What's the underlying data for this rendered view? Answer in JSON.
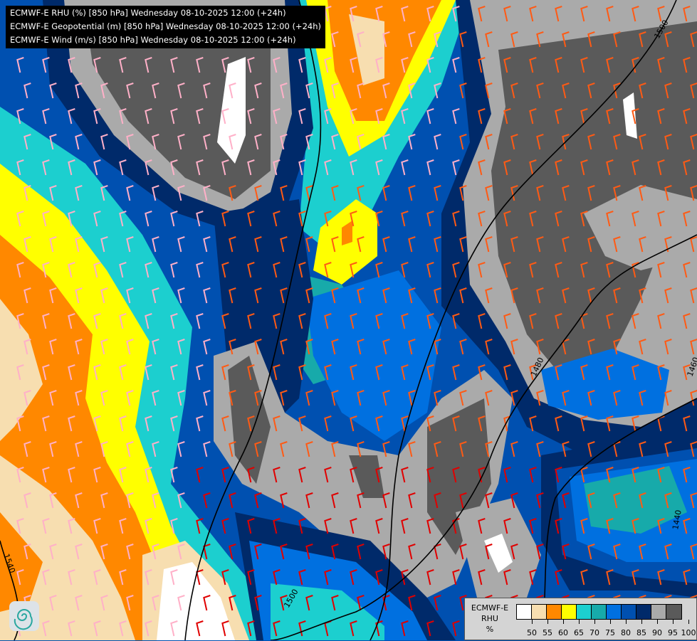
{
  "header": {
    "lines": [
      "ECMWF-E RHU (%) [850 hPa] Wednesday 08-10-2025 12:00 (+24h)",
      "ECMWF-E Geopotential (m) [850 hPa] Wednesday 08-10-2025 12:00 (+24h)",
      "ECMWF-E Wind (m/s) [850 hPa] Wednesday 08-10-2025 12:00 (+24h)"
    ]
  },
  "legend": {
    "name_line1": "ECMWF-E",
    "name_line2": "RHU",
    "unit": "%",
    "colors": [
      "#ffffff",
      "#f7deb0",
      "#ff8800",
      "#ffff00",
      "#1ccfcf",
      "#17aaaa",
      "#0070e0",
      "#0050b0",
      "#002a6a",
      "#aaaaaa",
      "#5a5a5a"
    ],
    "ticks": [
      "50",
      "55",
      "60",
      "65",
      "70",
      "75",
      "80",
      "85",
      "90",
      "95",
      "100"
    ]
  },
  "contours": {
    "labels": [
      "1500",
      "1480",
      "1460",
      "1440",
      "1500",
      "1540"
    ],
    "color": "#000000"
  },
  "wind_colors": {
    "light": "#ffb0c8",
    "moderate": "#ff5a14",
    "strong": "#e00000"
  },
  "logo": {
    "name": "ecmwf-swirl-logo"
  }
}
